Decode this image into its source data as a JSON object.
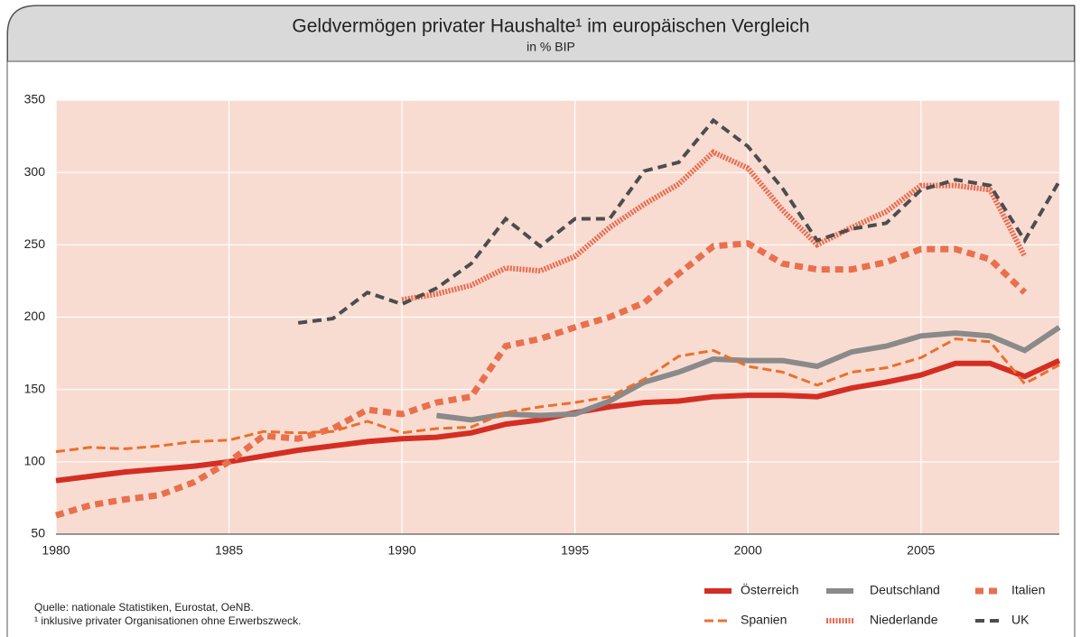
{
  "chart_data": {
    "type": "line",
    "title": "Geldvermögen privater Haushalte¹ im europäischen Vergleich",
    "subtitle": "in % BIP",
    "notes": [
      "Quelle: nationale Statistiken, Eurostat, OeNB.",
      "¹ inklusive privater Organisationen ohne Erwerbszweck."
    ],
    "x": [
      1980,
      1981,
      1982,
      1983,
      1984,
      1985,
      1986,
      1987,
      1988,
      1989,
      1990,
      1991,
      1992,
      1993,
      1994,
      1995,
      1996,
      1997,
      1998,
      1999,
      2000,
      2001,
      2002,
      2003,
      2004,
      2005,
      2006,
      2007,
      2008,
      2009
    ],
    "xlim": [
      1980,
      2009
    ],
    "xticks": [
      1980,
      1985,
      1990,
      1995,
      2000,
      2005
    ],
    "ylim": [
      50,
      350
    ],
    "yticks": [
      50,
      100,
      150,
      200,
      250,
      300,
      350
    ],
    "grid": true,
    "legend": "bottom-right",
    "background": "#f9dcd1",
    "series": [
      {
        "name": "Österreich",
        "color": "#d42e24",
        "width": 6,
        "dash": "none",
        "values": [
          87,
          90,
          93,
          95,
          97,
          100,
          104,
          108,
          111,
          114,
          116,
          117,
          120,
          126,
          129,
          134,
          138,
          141,
          142,
          145,
          146,
          146,
          145,
          151,
          155,
          160,
          168,
          168,
          159,
          170
        ]
      },
      {
        "name": "Deutschland",
        "color": "#8a8a8a",
        "width": 6,
        "dash": "none",
        "values": [
          null,
          null,
          null,
          null,
          null,
          null,
          null,
          null,
          null,
          null,
          null,
          132,
          129,
          133,
          132,
          133,
          142,
          155,
          162,
          171,
          170,
          170,
          166,
          176,
          180,
          187,
          189,
          187,
          177,
          193
        ]
      },
      {
        "name": "Italien",
        "color": "#e8704f",
        "width": 7,
        "dash": "9 6",
        "values": [
          63,
          70,
          74,
          77,
          86,
          100,
          118,
          116,
          123,
          136,
          133,
          141,
          145,
          180,
          185,
          193,
          200,
          210,
          230,
          249,
          251,
          237,
          233,
          233,
          238,
          247,
          247,
          240,
          217,
          null
        ]
      },
      {
        "name": "Spanien",
        "color": "#ec6f2d",
        "width": 3,
        "dash": "10 5",
        "values": [
          107,
          110,
          109,
          111,
          114,
          115,
          121,
          120,
          121,
          128,
          120,
          123,
          124,
          134,
          138,
          141,
          145,
          157,
          173,
          177,
          166,
          162,
          153,
          162,
          165,
          172,
          185,
          183,
          154,
          167
        ]
      },
      {
        "name": "Niederlande",
        "color": "#e86a4e",
        "width": 6,
        "dash": "2 1.5",
        "values": [
          null,
          null,
          null,
          null,
          null,
          null,
          null,
          null,
          null,
          null,
          212,
          216,
          222,
          234,
          232,
          242,
          262,
          278,
          292,
          314,
          303,
          274,
          250,
          262,
          273,
          291,
          291,
          288,
          242,
          null
        ]
      },
      {
        "name": "UK",
        "color": "#4d4d4f",
        "width": 4,
        "dash": "10 6",
        "values": [
          null,
          null,
          null,
          null,
          null,
          null,
          null,
          196,
          199,
          217,
          209,
          220,
          237,
          268,
          249,
          268,
          268,
          301,
          307,
          336,
          318,
          289,
          253,
          261,
          265,
          288,
          295,
          291,
          253,
          294
        ]
      }
    ]
  }
}
